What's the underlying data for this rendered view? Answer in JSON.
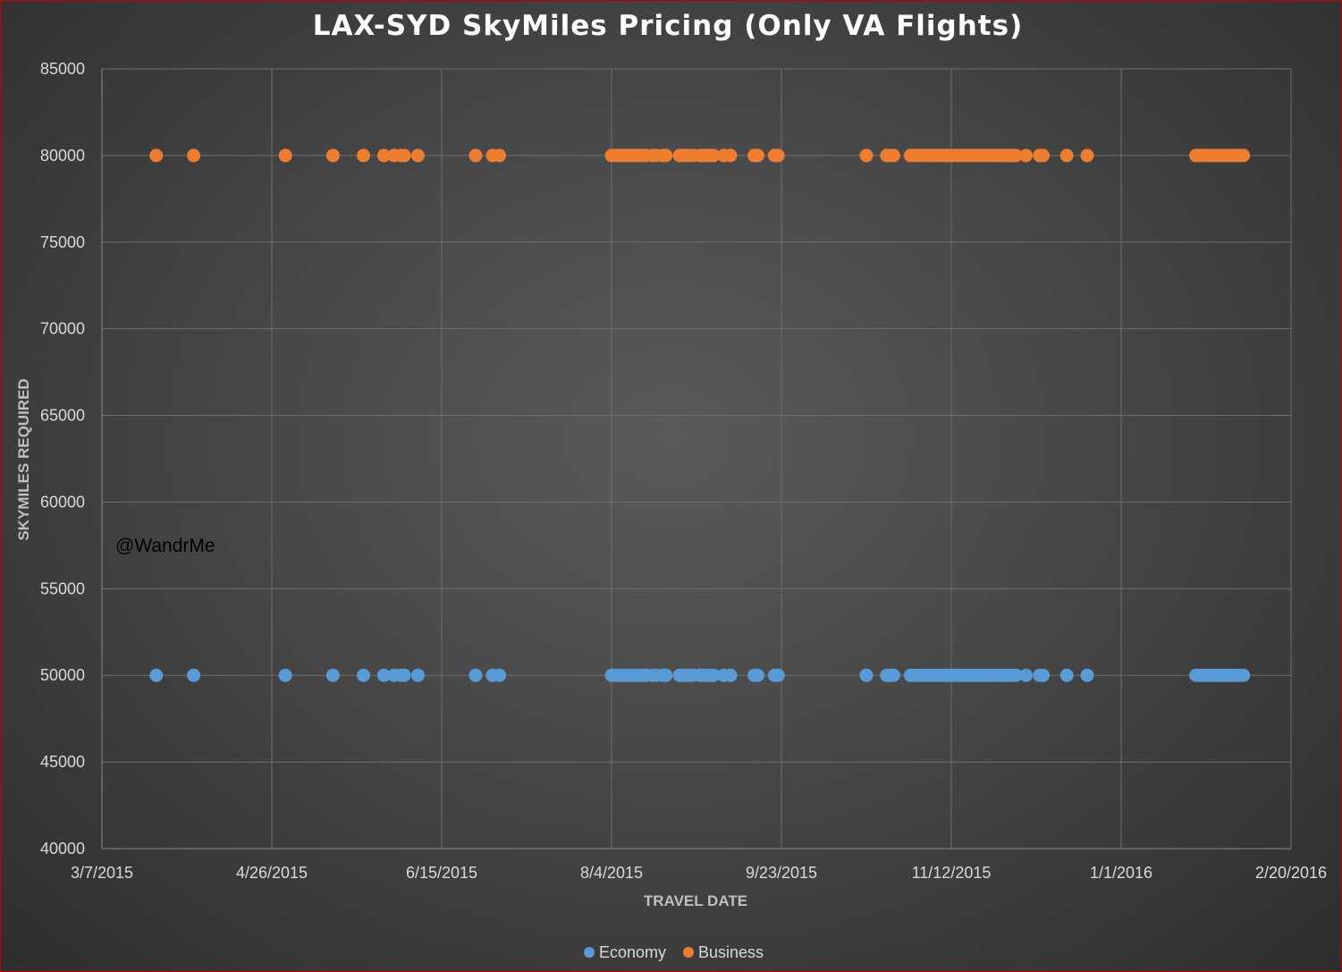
{
  "chart_data": {
    "type": "scatter",
    "title": "LAX-SYD SkyMiles Pricing (Only VA Flights)",
    "xlabel": "TRAVEL DATE",
    "ylabel": "SKYMILES REQUIRED",
    "ylim": [
      40000,
      85000
    ],
    "yticks": [
      40000,
      45000,
      50000,
      55000,
      60000,
      65000,
      70000,
      75000,
      80000,
      85000
    ],
    "xlim": [
      "3/7/2015",
      "2/20/2016"
    ],
    "xticks": [
      "3/7/2015",
      "4/26/2015",
      "6/15/2015",
      "8/4/2015",
      "9/23/2015",
      "11/12/2015",
      "1/1/2016",
      "2/20/2016"
    ],
    "x_unit": "days since 3/7/2015",
    "grid": true,
    "legend_position": "bottom",
    "annotation": "@WandrMe",
    "colors": {
      "Economy": "#5b9bd5",
      "Business": "#ed7d31"
    },
    "series": [
      {
        "name": "Economy",
        "y": 50000,
        "x": [
          16,
          27,
          54,
          68,
          77,
          83,
          86,
          88,
          89,
          93,
          110,
          115,
          117,
          150,
          151,
          152,
          153,
          154,
          155,
          156,
          157,
          158,
          159,
          160,
          162,
          163,
          165,
          166,
          170,
          171,
          172,
          173,
          174,
          176,
          177,
          178,
          179,
          180,
          183,
          185,
          192,
          193,
          198,
          199,
          225,
          231,
          232,
          233,
          238,
          239,
          240,
          241,
          242,
          243,
          244,
          245,
          246,
          247,
          248,
          249,
          250,
          251,
          252,
          253,
          254,
          255,
          256,
          257,
          258,
          259,
          260,
          261,
          262,
          263,
          264,
          265,
          266,
          267,
          268,
          269,
          272,
          276,
          277,
          284,
          290,
          322,
          323,
          324,
          325,
          326,
          327,
          328,
          329,
          330,
          331,
          332,
          333,
          334,
          335,
          336
        ]
      },
      {
        "name": "Business",
        "y": 80000,
        "x": [
          16,
          27,
          54,
          68,
          77,
          83,
          86,
          88,
          89,
          93,
          110,
          115,
          117,
          150,
          151,
          152,
          153,
          154,
          155,
          156,
          157,
          158,
          159,
          160,
          162,
          163,
          165,
          166,
          170,
          171,
          172,
          173,
          174,
          176,
          177,
          178,
          179,
          180,
          183,
          185,
          192,
          193,
          198,
          199,
          225,
          231,
          232,
          233,
          238,
          239,
          240,
          241,
          242,
          243,
          244,
          245,
          246,
          247,
          248,
          249,
          250,
          251,
          252,
          253,
          254,
          255,
          256,
          257,
          258,
          259,
          260,
          261,
          262,
          263,
          264,
          265,
          266,
          267,
          268,
          269,
          272,
          276,
          277,
          284,
          290,
          322,
          323,
          324,
          325,
          326,
          327,
          328,
          329,
          330,
          331,
          332,
          333,
          334,
          335,
          336
        ]
      }
    ]
  }
}
